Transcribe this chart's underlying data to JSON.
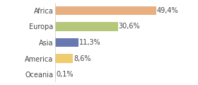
{
  "categories": [
    "Africa",
    "Europa",
    "Asia",
    "America",
    "Oceania"
  ],
  "values": [
    49.4,
    30.6,
    11.3,
    8.6,
    0.1
  ],
  "labels": [
    "49,4%",
    "30,6%",
    "11,3%",
    "8,6%",
    "0,1%"
  ],
  "bar_colors": [
    "#e8b080",
    "#b5c87a",
    "#6878b0",
    "#f0cc70",
    "#c8c8c8"
  ],
  "background_color": "#ffffff",
  "label_fontsize": 7.0,
  "category_fontsize": 7.0
}
